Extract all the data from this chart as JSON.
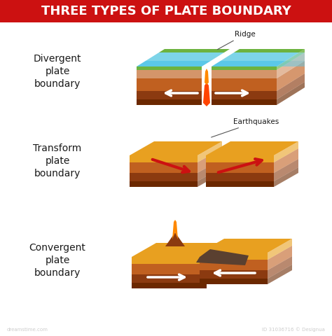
{
  "title": "THREE TYPES OF PLATE BOUNDARY",
  "title_color": "#FFFFFF",
  "title_bg_color": "#CC1111",
  "bg_color": "#FFFFFF",
  "boundary_labels": [
    "Divergent\nplate\nboundary",
    "Transform\nplate\nboundary",
    "Convergent\nplate\nboundary"
  ],
  "label_color": "#1a1a1a",
  "annotations": [
    "Ridge",
    "Earthquakes"
  ],
  "annotation_color": "#1a1a1a",
  "colors": {
    "water_top": "#5BC8E8",
    "water_mid": "#7DD4E8",
    "ground_top": "#6DB33F",
    "ground_yellow": "#E8A020",
    "ground_brown_dark": "#8B3A10",
    "ground_brown_mid": "#C06020",
    "ground_tan": "#D4956A",
    "ground_dark_base": "#6B2800",
    "lava_red": "#FF4400",
    "lava_orange": "#FF8800",
    "arrow_white": "#FFFFFF",
    "arrow_red": "#CC1111",
    "shadow": "#DDDDDD",
    "subduct_dark": "#5A4030"
  },
  "watermark": "ID 31036716 © Designua",
  "figsize": [
    4.74,
    4.8
  ],
  "dpi": 100
}
